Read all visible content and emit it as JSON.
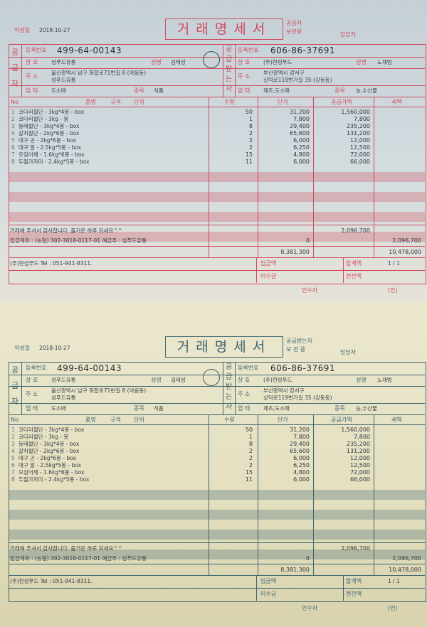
{
  "document_title": "거래명세서",
  "date_label": "작성일",
  "date": "2018-10-27",
  "manager_label": "담당자",
  "copies": [
    {
      "copy_label_1": "공급자",
      "copy_label_2": "보관용",
      "form_color": "#d04a5e",
      "paper_color": "#cdd6da"
    },
    {
      "copy_label_1": "공급받는자",
      "copy_label_2": "보 관 용",
      "form_color": "#3f6670",
      "paper_color": "#e6e2c4"
    }
  ],
  "supplier": {
    "side_label": [
      "공",
      "급",
      "자"
    ],
    "reg_label": "등록번호",
    "reg_no": "499-64-00143",
    "name_label": "상 호",
    "name": "성푸드유통",
    "rep_label": "성명",
    "rep": "김태성",
    "address_label": "주 소",
    "address": "울산광역시 남구 화합로71번길 8 (야음동)",
    "name2": "성푸드유통",
    "biz_label": "업 태",
    "biz": "도소매",
    "item_label": "종목",
    "item": "식품"
  },
  "recipient": {
    "side_label": [
      "공",
      "급",
      "받",
      "는",
      "자"
    ],
    "reg_label": "등록번호",
    "reg_no": "606-86-37691",
    "name_label": "상 호",
    "name": "(주)현성푸드",
    "rep_label": "성명",
    "rep": "노재범",
    "address_label": "주 소",
    "address_1": "부산광역시 강서구",
    "address_2": "상덕로119번가길 35 (강동동)",
    "biz_label": "업 태",
    "biz": "제조,도소매",
    "item_label": "종목",
    "item": "농,수산물"
  },
  "table": {
    "headers": {
      "no": "No",
      "item": "품명",
      "spec": "규격",
      "unit": "단위",
      "qty": "수량",
      "price": "단가",
      "amount": "공급가액",
      "tax": "세액"
    },
    "rows": [
      {
        "no": "1",
        "name": "코다리절단 - 3kg*4봉 - box",
        "qty": "50",
        "price": "31,200",
        "amount": "1,560,000"
      },
      {
        "no": "2",
        "name": "코다리절단 - 3kg - 봉",
        "qty": "1",
        "price": "7,800",
        "amount": "7,800"
      },
      {
        "no": "3",
        "name": "동태절단 - 3kg*4봉 - box",
        "qty": "8",
        "price": "29,400",
        "amount": "235,200"
      },
      {
        "no": "4",
        "name": "갈치절단 - 2kg*6봉 - box",
        "qty": "2",
        "price": "65,600",
        "amount": "131,200"
      },
      {
        "no": "5",
        "name": "대구 곤 - 2kg*6봉 - box",
        "qty": "2",
        "price": "6,000",
        "amount": "12,000"
      },
      {
        "no": "6",
        "name": "대구 알 - 2.5kg*5봉 - box",
        "qty": "2",
        "price": "6,250",
        "amount": "12,500"
      },
      {
        "no": "7",
        "name": "오징어채 - 1.6kg*6봉 - box",
        "qty": "15",
        "price": "4,800",
        "amount": "72,000"
      },
      {
        "no": "8",
        "name": "두절가자미 - 2.4kg*5봉 - box",
        "qty": "11",
        "price": "6,000",
        "amount": "66,000"
      }
    ]
  },
  "notes": {
    "message": "거래해 주셔서 감사합니다. 즐거운 하루 되세요^^",
    "account": "입금계좌 : (농협) 302-3018-0117-01 예금주 : 성푸드유통",
    "contact": "(주)현성푸드 Tel : 051-941-8311."
  },
  "totals": {
    "supply_total": "2,096,700",
    "tax_total": "0",
    "grand_total": "2,096,700",
    "previous_balance": "8,381,300",
    "balance": "10,478,000",
    "page": "1 / 1",
    "deposit_label": "입금액",
    "total_label": "합계액",
    "unpaid_label": "미수금",
    "current_balance_label": "현잔액",
    "receiver_label": "인수자",
    "seal_label": "(인)"
  }
}
